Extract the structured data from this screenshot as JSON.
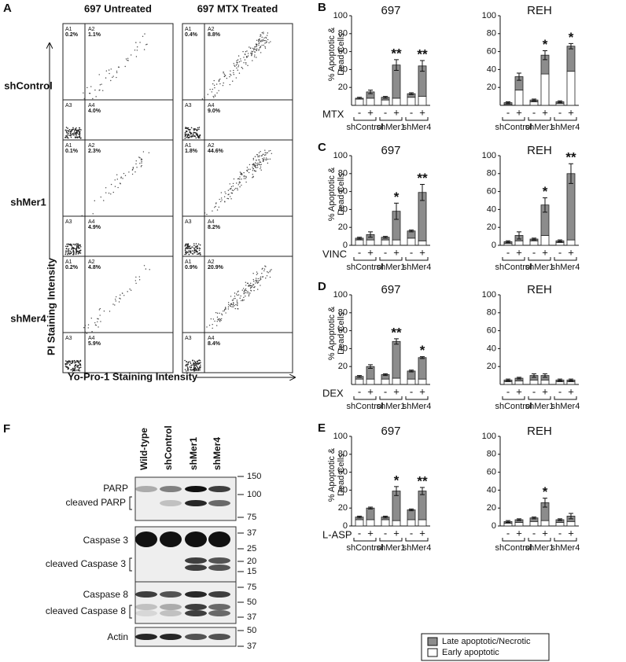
{
  "panel_a": {
    "title": "A",
    "columns": [
      "697 Untreated",
      "697 MTX Treated"
    ],
    "rows": [
      {
        "label": "shControl",
        "cells": [
          [
            "0.2%",
            "1.1%",
            "4.0%"
          ],
          [
            "0.4%",
            "8.8%",
            "9.0%"
          ]
        ]
      },
      {
        "label": "shMer1",
        "cells": [
          [
            "0.1%",
            "2.3%",
            "4.9%"
          ],
          [
            "1.8%",
            "44.6%",
            "8.2%"
          ]
        ]
      },
      {
        "label": "shMer4",
        "cells": [
          [
            "0.2%",
            "4.8%",
            "5.9%"
          ],
          [
            "0.9%",
            "20.9%",
            "8.4%"
          ]
        ]
      }
    ],
    "quadrants": [
      "A1",
      "A2",
      "A3",
      "A4"
    ],
    "y_label": "PI Staining Intensity",
    "x_label": "Yo-Pro-1 Staining Intensity"
  },
  "chart_data": [
    {
      "type": "bar",
      "stacked": true,
      "panel": "B",
      "title": "697",
      "y_label": [
        "% Apoptotic &",
        "Dead Cells"
      ],
      "treatment": "MTX",
      "groups": [
        "shControl",
        "shMer1",
        "shMer4"
      ],
      "categories": [
        "-",
        "+",
        "-",
        "+",
        "-",
        "+"
      ],
      "series": [
        {
          "name": "Early apoptotic",
          "color": "#ffffff",
          "values": [
            7,
            8,
            6,
            8,
            9,
            10
          ]
        },
        {
          "name": "Late apoptotic/Necrotic",
          "color": "#8c8c8c",
          "values": [
            1,
            7,
            3,
            37,
            4,
            34
          ],
          "errors": [
            1,
            2,
            1,
            6,
            1,
            6
          ]
        }
      ],
      "significance": [
        null,
        null,
        null,
        "**",
        null,
        "**"
      ],
      "ylim": [
        0,
        100
      ],
      "yticks": [
        20,
        40,
        60,
        80,
        100
      ]
    },
    {
      "type": "bar",
      "stacked": true,
      "title": "REH",
      "groups": [
        "shControl",
        "shMer1",
        "shMer4"
      ],
      "categories": [
        "-",
        "+",
        "-",
        "+",
        "-",
        "+"
      ],
      "series": [
        {
          "name": "Early apoptotic",
          "color": "#ffffff",
          "values": [
            1,
            17,
            4,
            35,
            2,
            38
          ]
        },
        {
          "name": "Late apoptotic/Necrotic",
          "color": "#8c8c8c",
          "values": [
            2,
            15,
            2,
            21,
            2,
            28
          ],
          "errors": [
            1,
            4,
            1,
            5,
            1,
            3
          ]
        }
      ],
      "significance": [
        null,
        null,
        null,
        "*",
        null,
        "*"
      ],
      "ylim": [
        0,
        100
      ],
      "yticks": [
        20,
        40,
        60,
        80,
        100
      ]
    },
    {
      "type": "bar",
      "stacked": true,
      "panel": "C",
      "title": "697",
      "y_label": [
        "% Apoptotic &",
        "Dead Cells"
      ],
      "treatment": "VINC",
      "groups": [
        "shControl",
        "shMer1",
        "shMer4"
      ],
      "categories": [
        "-",
        "+",
        "-",
        "+",
        "-",
        "+"
      ],
      "series": [
        {
          "name": "Early apoptotic",
          "color": "#ffffff",
          "values": [
            6,
            6,
            6,
            6,
            8,
            5
          ]
        },
        {
          "name": "Late apoptotic/Necrotic",
          "color": "#8c8c8c",
          "values": [
            2,
            6,
            3,
            32,
            8,
            54
          ],
          "errors": [
            1,
            3,
            1,
            9,
            1,
            9
          ]
        }
      ],
      "significance": [
        null,
        null,
        null,
        "*",
        null,
        "**"
      ],
      "ylim": [
        0,
        100
      ],
      "yticks": [
        0,
        20,
        40,
        60,
        80,
        100
      ]
    },
    {
      "type": "bar",
      "stacked": true,
      "title": "REH",
      "groups": [
        "shControl",
        "shMer1",
        "shMer4"
      ],
      "categories": [
        "-",
        "+",
        "-",
        "+",
        "-",
        "+"
      ],
      "series": [
        {
          "name": "Early apoptotic",
          "color": "#ffffff",
          "values": [
            2,
            5,
            5,
            11,
            3,
            6
          ]
        },
        {
          "name": "Late apoptotic/Necrotic",
          "color": "#8c8c8c",
          "values": [
            2,
            6,
            2,
            34,
            2,
            74
          ],
          "errors": [
            1,
            4,
            1,
            8,
            1,
            11
          ]
        }
      ],
      "significance": [
        null,
        null,
        null,
        "*",
        null,
        "**"
      ],
      "ylim": [
        0,
        100
      ],
      "yticks": [
        0,
        20,
        40,
        60,
        80,
        100
      ]
    },
    {
      "type": "bar",
      "stacked": true,
      "panel": "D",
      "title": "697",
      "y_label": [
        "% Apoptotic &",
        "Dead Cells"
      ],
      "treatment": "DEX",
      "groups": [
        "shControl",
        "shMer1",
        "shMer4"
      ],
      "categories": [
        "-",
        "+",
        "-",
        "+",
        "-",
        "+"
      ],
      "series": [
        {
          "name": "Early apoptotic",
          "color": "#ffffff",
          "values": [
            6,
            6,
            6,
            7,
            6,
            6
          ]
        },
        {
          "name": "Late apoptotic/Necrotic",
          "color": "#8c8c8c",
          "values": [
            3,
            14,
            5,
            41,
            9,
            24
          ],
          "errors": [
            1,
            2,
            1,
            3,
            1,
            1
          ]
        }
      ],
      "significance": [
        null,
        null,
        null,
        "**",
        null,
        "*"
      ],
      "ylim": [
        0,
        100
      ],
      "yticks": [
        20,
        40,
        60,
        80,
        100
      ]
    },
    {
      "type": "bar",
      "stacked": true,
      "title": "REH",
      "groups": [
        "shControl",
        "shMer1",
        "shMer4"
      ],
      "categories": [
        "-",
        "+",
        "-",
        "+",
        "-",
        "+"
      ],
      "series": [
        {
          "name": "Early apoptotic",
          "color": "#ffffff",
          "values": [
            3,
            4,
            5,
            5,
            3,
            3
          ]
        },
        {
          "name": "Late apoptotic/Necrotic",
          "color": "#8c8c8c",
          "values": [
            2,
            3,
            5,
            5,
            2,
            2
          ],
          "errors": [
            1,
            1,
            2,
            2,
            1,
            1
          ]
        }
      ],
      "significance": [
        null,
        null,
        null,
        null,
        null,
        null
      ],
      "ylim": [
        0,
        100
      ],
      "yticks": [
        20,
        40,
        60,
        80,
        100
      ]
    },
    {
      "type": "bar",
      "stacked": true,
      "panel": "E",
      "title": "697",
      "y_label": [
        "% Apoptotic &",
        "Dead Cells"
      ],
      "treatment": "L-ASP",
      "groups": [
        "shControl",
        "shMer1",
        "shMer4"
      ],
      "categories": [
        "-",
        "+",
        "-",
        "+",
        "-",
        "+"
      ],
      "series": [
        {
          "name": "Early apoptotic",
          "color": "#ffffff",
          "values": [
            7,
            7,
            7,
            6,
            7,
            7
          ]
        },
        {
          "name": "Late apoptotic/Necrotic",
          "color": "#8c8c8c",
          "values": [
            3,
            13,
            3,
            33,
            11,
            32
          ],
          "errors": [
            1,
            1,
            1,
            5,
            1,
            4
          ]
        }
      ],
      "significance": [
        null,
        null,
        null,
        "*",
        null,
        "**"
      ],
      "ylim": [
        0,
        100
      ],
      "yticks": [
        0,
        20,
        40,
        60,
        80,
        100
      ]
    },
    {
      "type": "bar",
      "stacked": true,
      "title": "REH",
      "groups": [
        "shControl",
        "shMer1",
        "shMer4"
      ],
      "categories": [
        "-",
        "+",
        "-",
        "+",
        "-",
        "+"
      ],
      "series": [
        {
          "name": "Early apoptotic",
          "color": "#ffffff",
          "values": [
            3,
            4,
            5,
            6,
            4,
            5
          ]
        },
        {
          "name": "Late apoptotic/Necrotic",
          "color": "#8c8c8c",
          "values": [
            2,
            3,
            4,
            20,
            3,
            6
          ],
          "errors": [
            1,
            1,
            1,
            5,
            1,
            3
          ]
        }
      ],
      "significance": [
        null,
        null,
        null,
        "*",
        null,
        null
      ],
      "ylim": [
        0,
        100
      ],
      "yticks": [
        0,
        20,
        40,
        60,
        80,
        100
      ]
    }
  ],
  "panel_f": {
    "title": "F",
    "lanes": [
      "Wild-type",
      "shControl",
      "shMer1",
      "shMer4"
    ],
    "blots": [
      {
        "labels": [
          "PARP",
          "cleaved PARP"
        ],
        "markers": [
          "150",
          "100",
          "75"
        ]
      },
      {
        "labels": [
          "Caspase 3",
          "cleaved Caspase 3"
        ],
        "markers": [
          "37",
          "25",
          "20",
          "15"
        ]
      },
      {
        "labels": [
          "Caspase 8",
          "cleaved Caspase 8"
        ],
        "markers": [
          "75",
          "50",
          "37"
        ]
      },
      {
        "labels": [
          "Actin"
        ],
        "markers": [
          "50",
          "37"
        ]
      }
    ]
  }
}
